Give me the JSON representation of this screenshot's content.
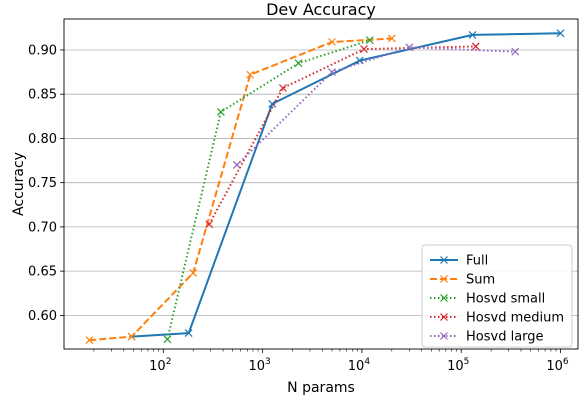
{
  "chart_data": {
    "type": "line",
    "title": "Dev Accuracy",
    "xlabel": "N params",
    "ylabel": "Accuracy",
    "xscale": "log",
    "xlim": [
      10,
      1500000
    ],
    "ylim": [
      0.562,
      0.935
    ],
    "xticks": [
      {
        "value": 100,
        "base": "10",
        "exp": "2"
      },
      {
        "value": 1000,
        "base": "10",
        "exp": "3"
      },
      {
        "value": 10000,
        "base": "10",
        "exp": "4"
      },
      {
        "value": 100000,
        "base": "10",
        "exp": "5"
      },
      {
        "value": 1000000,
        "base": "10",
        "exp": "6"
      }
    ],
    "yticks": [
      "0.60",
      "0.65",
      "0.70",
      "0.75",
      "0.80",
      "0.85",
      "0.90"
    ],
    "grid": "y",
    "legend_position": "lower-right",
    "series": [
      {
        "name": "Full",
        "color": "#1f77b4",
        "style": "solid",
        "x": [
          48,
          180,
          1250,
          9500,
          130000,
          1000000
        ],
        "y": [
          0.576,
          0.58,
          0.839,
          0.888,
          0.917,
          0.919
        ]
      },
      {
        "name": "Sum",
        "color": "#ff7f0e",
        "style": "dashed",
        "x": [
          18,
          48,
          200,
          750,
          5000,
          20000
        ],
        "y": [
          0.572,
          0.576,
          0.648,
          0.872,
          0.909,
          0.913
        ]
      },
      {
        "name": "Hosvd small",
        "color": "#2ca02c",
        "style": "dotted",
        "x": [
          110,
          380,
          2300,
          12000
        ],
        "y": [
          0.573,
          0.83,
          0.885,
          0.911
        ]
      },
      {
        "name": "Hosvd medium",
        "color": "#d62728",
        "style": "dotted",
        "x": [
          290,
          1600,
          10500,
          140000
        ],
        "y": [
          0.703,
          0.857,
          0.901,
          0.904
        ]
      },
      {
        "name": "Hosvd large",
        "color": "#9467bd",
        "style": "dotted",
        "x": [
          550,
          5000,
          30000,
          350000
        ],
        "y": [
          0.77,
          0.875,
          0.903,
          0.898
        ]
      }
    ]
  }
}
